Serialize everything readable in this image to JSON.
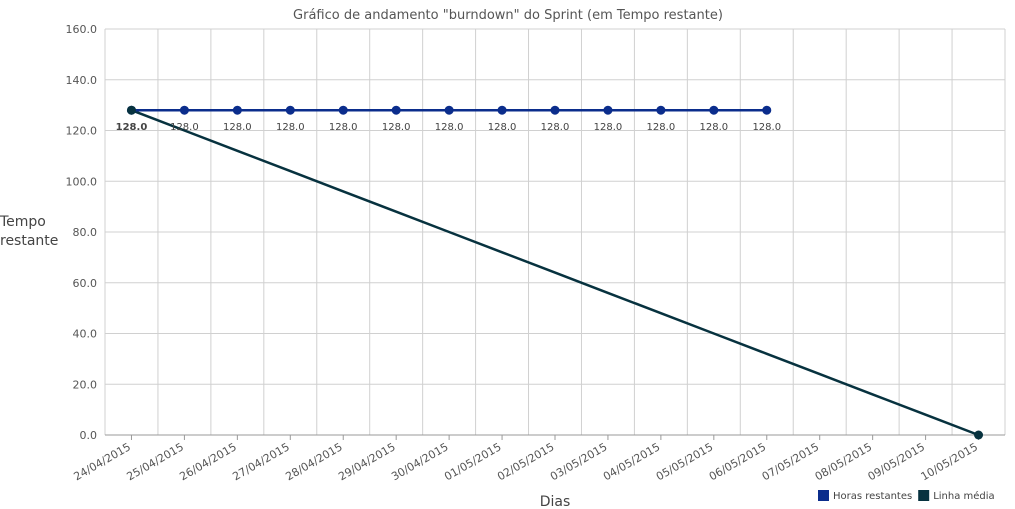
{
  "chart_data": {
    "type": "line",
    "title": "Gráfico de andamento \"burndown\" do Sprint (em Tempo restante)",
    "x_label": "Dias",
    "y_label": "Tempo restante",
    "categories": [
      "24/04/2015",
      "25/04/2015",
      "26/04/2015",
      "27/04/2015",
      "28/04/2015",
      "29/04/2015",
      "30/04/2015",
      "01/05/2015",
      "02/05/2015",
      "03/05/2015",
      "04/05/2015",
      "05/05/2015",
      "06/05/2015",
      "07/05/2015",
      "08/05/2015",
      "09/05/2015",
      "10/05/2015"
    ],
    "series": [
      {
        "name": "Horas restantes",
        "color": "#0b2d8c",
        "values": [
          128,
          128,
          128,
          128,
          128,
          128,
          128,
          128,
          128,
          128,
          128,
          128,
          128,
          null,
          null,
          null,
          null
        ],
        "value_labels": [
          "128.0",
          "128.0",
          "128.0",
          "128.0",
          "128.0",
          "128.0",
          "128.0",
          "128.0",
          "128.0",
          "128.0",
          "128.0",
          "128.0",
          "128.0",
          null,
          null,
          null,
          null
        ]
      },
      {
        "name": "Linha média",
        "color": "#07323f",
        "values": [
          128,
          120,
          112,
          104,
          96,
          88,
          80,
          72,
          64,
          56,
          48,
          40,
          32,
          24,
          16,
          8,
          0
        ]
      }
    ],
    "ylim": [
      0,
      160
    ],
    "yticks": [
      {
        "value": 0,
        "label": "0.0"
      },
      {
        "value": 20,
        "label": "20.0"
      },
      {
        "value": 40,
        "label": "40.0"
      },
      {
        "value": 60,
        "label": "60.0"
      },
      {
        "value": 80,
        "label": "80.0"
      },
      {
        "value": 100,
        "label": "100.0"
      },
      {
        "value": 120,
        "label": "120.0"
      },
      {
        "value": 140,
        "label": "140.0"
      },
      {
        "value": 160,
        "label": "160.0"
      }
    ],
    "grid": true,
    "legend": "bottom-right"
  }
}
